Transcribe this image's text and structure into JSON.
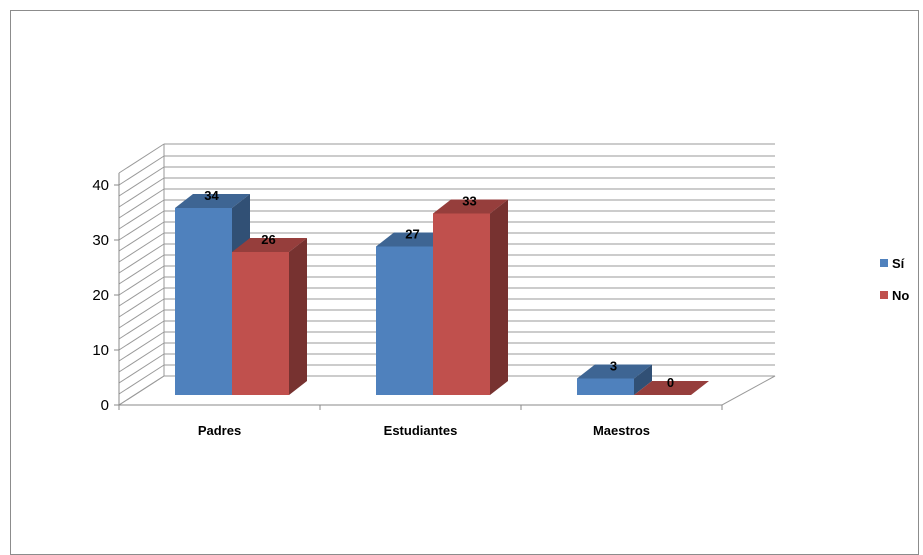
{
  "chart_data": {
    "type": "bar",
    "style": "3d-clustered",
    "categories": [
      "Padres",
      "Estudiantes",
      "Maestros"
    ],
    "series": [
      {
        "name": "Sí",
        "values": [
          34,
          27,
          3
        ],
        "color": "#4f81bd"
      },
      {
        "name": "No",
        "values": [
          26,
          33,
          0
        ],
        "color": "#c0504d"
      }
    ],
    "y_ticks": [
      "0",
      "10",
      "20",
      "30",
      "40"
    ],
    "ylim": [
      0,
      40
    ],
    "grid": true,
    "legend": "right"
  }
}
